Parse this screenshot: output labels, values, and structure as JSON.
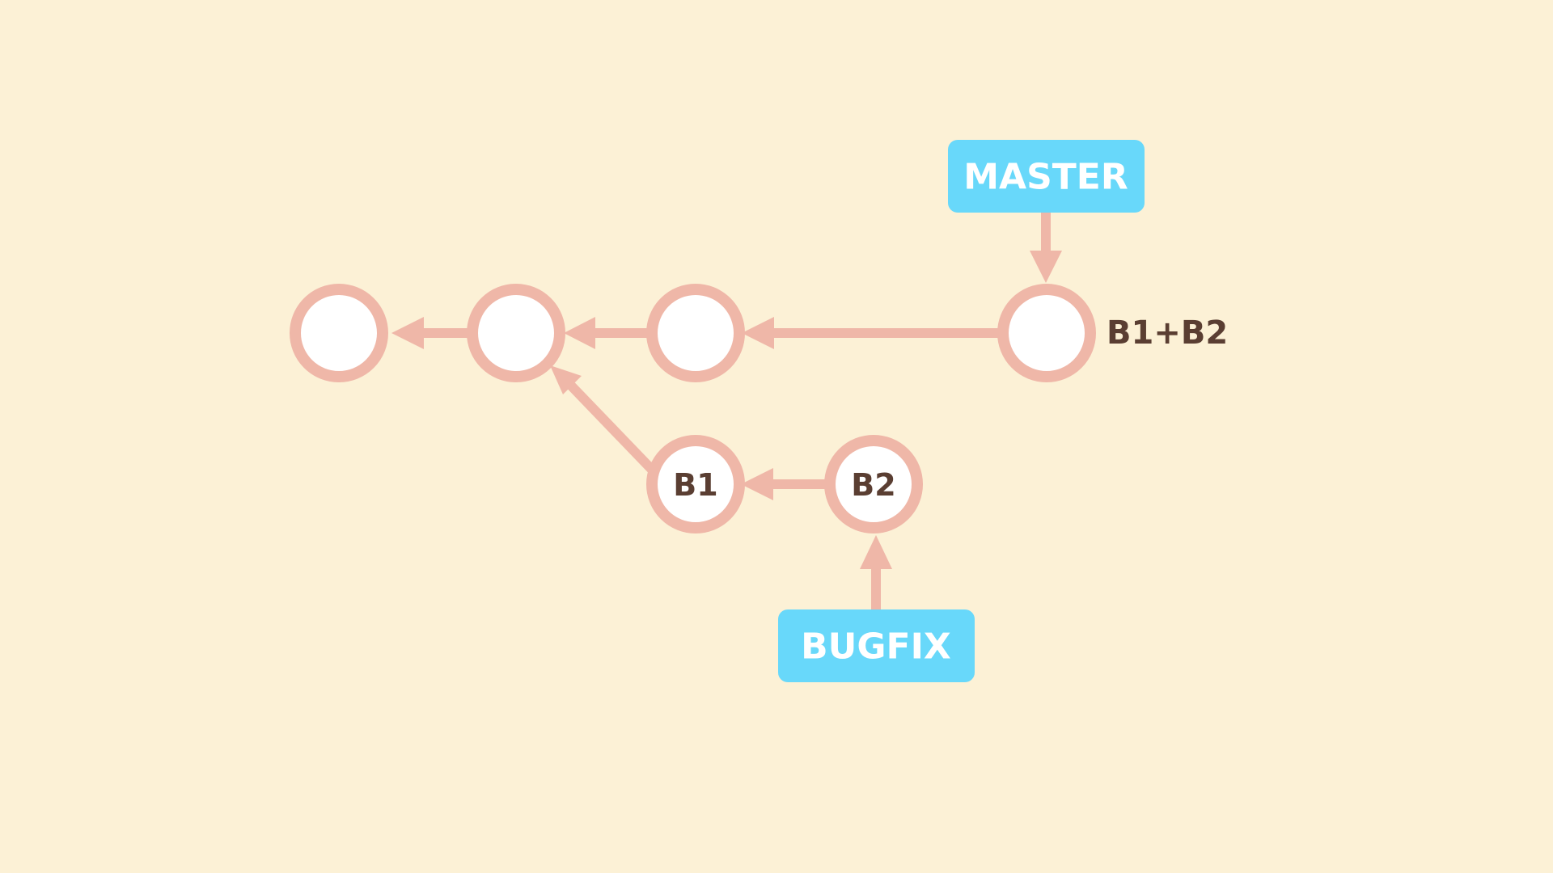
{
  "diagram": {
    "type": "git-commit-graph",
    "colors": {
      "background": "#FCF1D6",
      "commit_stroke": "#EFB7A8",
      "commit_fill": "#FFFFFF",
      "edge": "#EFB7A8",
      "branch_label_bg": "#68D8FA",
      "branch_label_text": "#FFFFFF",
      "commit_text": "#5A3E32"
    },
    "commits": [
      {
        "id": "c1",
        "label": ""
      },
      {
        "id": "c2",
        "label": ""
      },
      {
        "id": "c3",
        "label": ""
      },
      {
        "id": "merge",
        "label": "",
        "side_label": "B1+B2"
      },
      {
        "id": "b1",
        "label": "B1"
      },
      {
        "id": "b2",
        "label": "B2"
      }
    ],
    "parent_edges": [
      {
        "from": "c2",
        "to": "c1"
      },
      {
        "from": "c3",
        "to": "c2"
      },
      {
        "from": "merge",
        "to": "c3"
      },
      {
        "from": "b1",
        "to": "c2"
      },
      {
        "from": "b2",
        "to": "b1"
      }
    ],
    "branches": [
      {
        "id": "master",
        "label": "MASTER",
        "points_to": "merge"
      },
      {
        "id": "bugfix",
        "label": "BUGFIX",
        "points_to": "b2"
      }
    ]
  }
}
